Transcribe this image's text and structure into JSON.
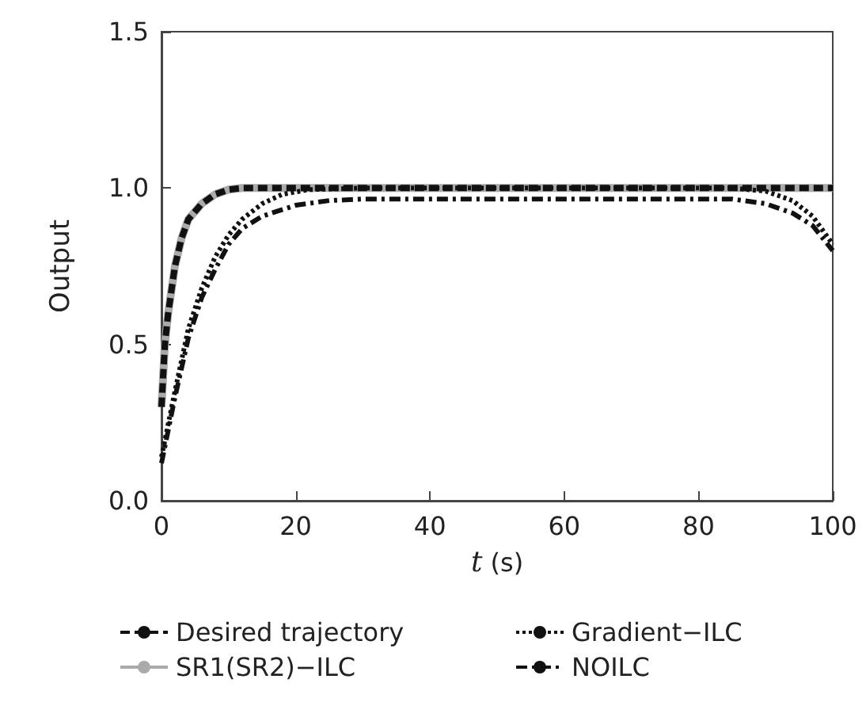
{
  "chart_data": {
    "type": "line",
    "xlabel": "t (s)",
    "ylabel": "Output",
    "xlim": [
      0,
      100
    ],
    "ylim": [
      0,
      1.5
    ],
    "xticks": [
      0,
      20,
      40,
      60,
      80,
      100
    ],
    "yticks": [
      {
        "value": 0,
        "label": "0.0"
      },
      {
        "value": 0.5,
        "label": "0.5"
      },
      {
        "value": 1,
        "label": "1.0"
      },
      {
        "value": 1.5,
        "label": "1.5"
      }
    ],
    "grid": false,
    "legend": "bottom",
    "marker": "none",
    "series": [
      {
        "name": "Desired trajectory",
        "color": "#111111",
        "line_style": "dashed",
        "x": [
          0,
          0.5,
          1,
          2,
          3,
          4,
          6,
          8,
          10,
          12,
          20,
          40,
          60,
          80,
          100
        ],
        "values": [
          0.3,
          0.5,
          0.6,
          0.75,
          0.84,
          0.9,
          0.95,
          0.98,
          0.995,
          1,
          1,
          1,
          1,
          1,
          1
        ]
      },
      {
        "name": "SR1(SR2)−ILC",
        "color": "#aaaaaa",
        "line_style": "solid",
        "x": [
          0,
          0.5,
          1,
          2,
          3,
          4,
          6,
          8,
          10,
          12,
          20,
          40,
          60,
          80,
          100
        ],
        "values": [
          0.3,
          0.5,
          0.6,
          0.75,
          0.84,
          0.9,
          0.95,
          0.98,
          0.995,
          1,
          1,
          1,
          1,
          1,
          1
        ]
      },
      {
        "name": "Gradient−ILC",
        "color": "#111111",
        "line_style": "dotted",
        "x": [
          0,
          2,
          4,
          6,
          8,
          10,
          12,
          15,
          18,
          22,
          30,
          60,
          85,
          90,
          94,
          97,
          100
        ],
        "values": [
          0.14,
          0.35,
          0.55,
          0.68,
          0.78,
          0.85,
          0.9,
          0.95,
          0.98,
          0.995,
          1,
          1,
          1,
          0.99,
          0.96,
          0.91,
          0.82
        ]
      },
      {
        "name": "NOILC",
        "color": "#111111",
        "line_style": "dashdot",
        "x": [
          0,
          2,
          4,
          6,
          8,
          10,
          12,
          15,
          20,
          25,
          30,
          60,
          85,
          90,
          94,
          97,
          100
        ],
        "values": [
          0.12,
          0.33,
          0.52,
          0.65,
          0.74,
          0.82,
          0.87,
          0.91,
          0.945,
          0.96,
          0.965,
          0.965,
          0.965,
          0.95,
          0.92,
          0.88,
          0.8
        ]
      }
    ]
  }
}
